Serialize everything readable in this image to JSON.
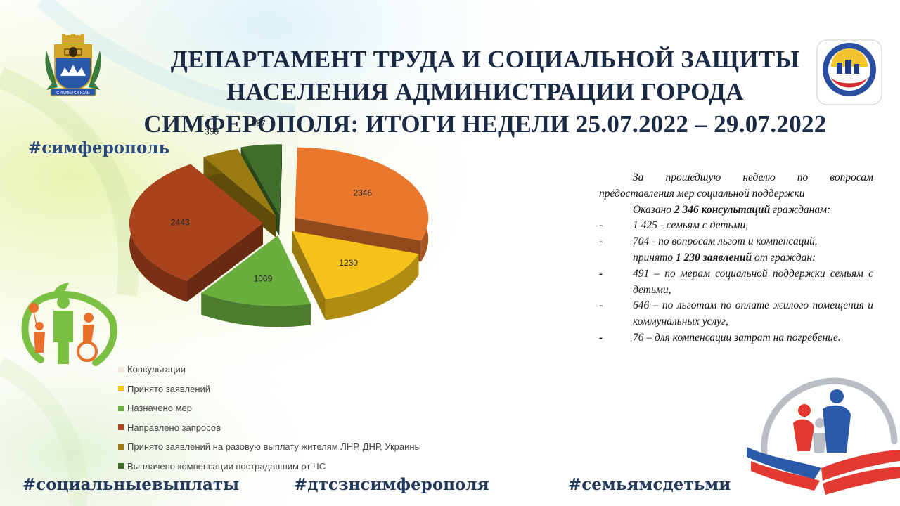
{
  "title": {
    "line1": "ДЕПАРТАМЕНТ ТРУДА И СОЦИАЛЬНОЙ ЗАЩИТЫ",
    "line2": "НАСЕЛЕНИЯ АДМИНИСТРАЦИИ ГОРОДА",
    "line3": "СИМФЕРОПОЛЯ: ИТОГИ НЕДЕЛИ 25.07.2022 – 29.07.2022"
  },
  "hashtags": {
    "top": "#симферополь",
    "bottom_left": "#социальныевыплаты",
    "bottom_center": "#дтсзнсимферополя",
    "bottom_right": "#семьямсдетьми"
  },
  "emblem": {
    "text": "СИМФЕРОПОЛЬ",
    "icon": "city-coat-of-arms"
  },
  "dept_logo": {
    "icon": "department-logo"
  },
  "family_icon": {
    "icon": "family-with-disabled-child-icon"
  },
  "bottom_logo": {
    "icon": "family-year-logo"
  },
  "colors": {
    "consultations": "#E9782D",
    "applications": "#F5C21A",
    "measures": "#6AAE3E",
    "requests": "#A8431C",
    "lnr_dnr": "#9A7B12",
    "emergency": "#3F6E2A",
    "title": "#1b2a44"
  },
  "chart_data": {
    "type": "pie",
    "style": "3d-exploded",
    "slices": [
      {
        "name": "Консультации",
        "value": 2346,
        "color": "#E9782D"
      },
      {
        "name": "Принято заявлений",
        "value": 1230,
        "color": "#F5C21A"
      },
      {
        "name": "Назначено мер",
        "value": 1069,
        "color": "#6AAE3E"
      },
      {
        "name": "Направлено запросов",
        "value": 2443,
        "color": "#A8431C"
      },
      {
        "name": "Принято заявлений на разовую выплату жителям ЛНР, ДНР, Украины",
        "value": 350,
        "color": "#9A7B12"
      },
      {
        "name": "Выплачено компенсации пострадавшим от ЧС",
        "value": 387,
        "color": "#3F6E2A"
      }
    ],
    "legend_position": "bottom"
  },
  "info": {
    "p1": "За прошедшую неделю по вопросам предоставления мер социальной поддержки",
    "p2_prefix": "Оказано ",
    "p2_bold": "2 346 консультаций",
    "p2_suffix": " гражданам:",
    "items1": [
      {
        "dash": "-",
        "text": "1 425 - семьям с детьми,"
      },
      {
        "dash": "-",
        "text": "704 - по вопросам льгот и компенсаций."
      }
    ],
    "p3_prefix": "принято ",
    "p3_bold": "1 230 заявлений",
    "p3_suffix": " от граждан:",
    "items2": [
      {
        "dash": "-",
        "text": "491 – по мерам социальной поддержки семьям с детьми,"
      },
      {
        "dash": "-",
        "text": "646 – по льготам по оплате жилого помещения и коммунальных услуг,"
      },
      {
        "dash": "-",
        "text": "76 – для компенсации затрат на погребение."
      }
    ]
  }
}
